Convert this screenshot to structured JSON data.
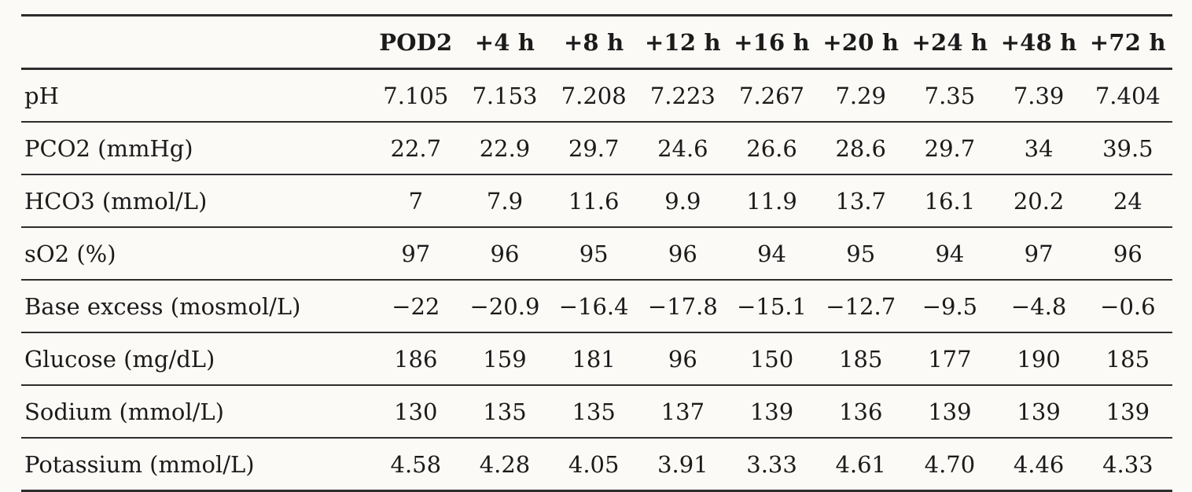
{
  "table": {
    "columns": [
      "",
      "POD2",
      "+4 h",
      "+8 h",
      "+12 h",
      "+16 h",
      "+20 h",
      "+24 h",
      "+48 h",
      "+72 h"
    ],
    "rows": [
      {
        "label": "pH",
        "values": [
          "7.105",
          "7.153",
          "7.208",
          "7.223",
          "7.267",
          "7.29",
          "7.35",
          "7.39",
          "7.404"
        ]
      },
      {
        "label": "PCO2 (mmHg)",
        "values": [
          "22.7",
          "22.9",
          "29.7",
          "24.6",
          "26.6",
          "28.6",
          "29.7",
          "34",
          "39.5"
        ]
      },
      {
        "label": "HCO3 (mmol/L)",
        "values": [
          "7",
          "7.9",
          "11.6",
          "9.9",
          "11.9",
          "13.7",
          "16.1",
          "20.2",
          "24"
        ]
      },
      {
        "label": "sO2 (%)",
        "values": [
          "97",
          "96",
          "95",
          "96",
          "94",
          "95",
          "94",
          "97",
          "96"
        ]
      },
      {
        "label": "Base excess (mosmol/L)",
        "values": [
          "−22",
          "−20.9",
          "−16.4",
          "−17.8",
          "−15.1",
          "−12.7",
          "−9.5",
          "−4.8",
          "−0.6"
        ]
      },
      {
        "label": "Glucose (mg/dL)",
        "values": [
          "186",
          "159",
          "181",
          "96",
          "150",
          "185",
          "177",
          "190",
          "185"
        ]
      },
      {
        "label": "Sodium (mmol/L)",
        "values": [
          "130",
          "135",
          "135",
          "137",
          "139",
          "136",
          "139",
          "139",
          "139"
        ]
      },
      {
        "label": "Potassium (mmol/L)",
        "values": [
          "4.58",
          "4.28",
          "4.05",
          "3.91",
          "3.33",
          "4.61",
          "4.70",
          "4.46",
          "4.33"
        ]
      }
    ]
  },
  "chart_data": {
    "type": "table",
    "categories": [
      "POD2",
      "+4 h",
      "+8 h",
      "+12 h",
      "+16 h",
      "+20 h",
      "+24 h",
      "+48 h",
      "+72 h"
    ],
    "series": [
      {
        "name": "pH",
        "values": [
          7.105,
          7.153,
          7.208,
          7.223,
          7.267,
          7.29,
          7.35,
          7.39,
          7.404
        ]
      },
      {
        "name": "PCO2 (mmHg)",
        "values": [
          22.7,
          22.9,
          29.7,
          24.6,
          26.6,
          28.6,
          29.7,
          34,
          39.5
        ]
      },
      {
        "name": "HCO3 (mmol/L)",
        "values": [
          7,
          7.9,
          11.6,
          9.9,
          11.9,
          13.7,
          16.1,
          20.2,
          24
        ]
      },
      {
        "name": "sO2 (%)",
        "values": [
          97,
          96,
          95,
          96,
          94,
          95,
          94,
          97,
          96
        ]
      },
      {
        "name": "Base excess (mosmol/L)",
        "values": [
          -22,
          -20.9,
          -16.4,
          -17.8,
          -15.1,
          -12.7,
          -9.5,
          -4.8,
          -0.6
        ]
      },
      {
        "name": "Glucose (mg/dL)",
        "values": [
          186,
          159,
          181,
          96,
          150,
          185,
          177,
          190,
          185
        ]
      },
      {
        "name": "Sodium (mmol/L)",
        "values": [
          130,
          135,
          135,
          137,
          139,
          136,
          139,
          139,
          139
        ]
      },
      {
        "name": "Potassium (mmol/L)",
        "values": [
          4.58,
          4.28,
          4.05,
          3.91,
          3.33,
          4.61,
          4.7,
          4.46,
          4.33
        ]
      }
    ]
  },
  "colors": {
    "background": "#fbfaf7",
    "text": "#1b1b1b",
    "rule": "#2d2d2d"
  }
}
